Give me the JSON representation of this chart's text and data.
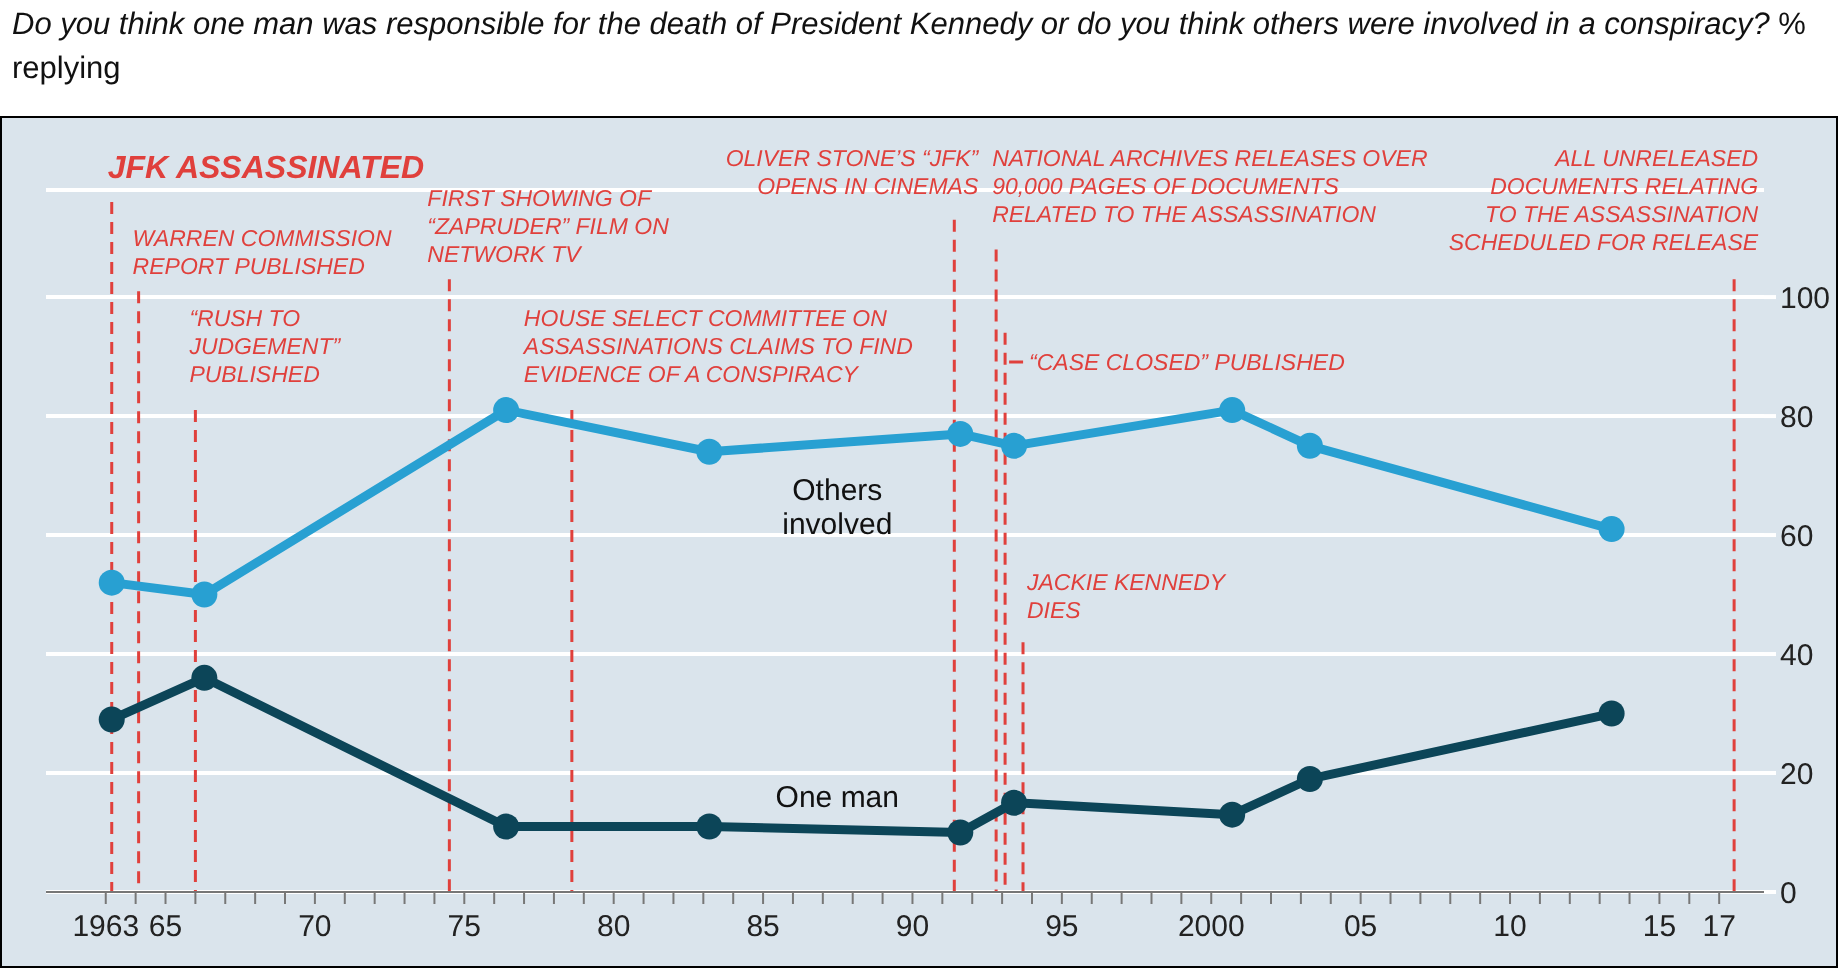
{
  "chart_data": {
    "type": "line",
    "title": "Do you think one man was responsible for the death of President Kennedy or do you think others were involved in a conspiracy?",
    "subtitle": "% replying",
    "x": [
      1963.2,
      1966.3,
      1976.4,
      1983.2,
      1991.6,
      1993.4,
      2000.7,
      2003.3,
      2013.4
    ],
    "series": [
      {
        "name": "Others involved",
        "color": "#28a0d2",
        "values": [
          52,
          50,
          81,
          74,
          77,
          75,
          81,
          75,
          61
        ]
      },
      {
        "name": "One man",
        "color": "#0c4558",
        "values": [
          29,
          36,
          11,
          11,
          10,
          15,
          13,
          19,
          30
        ]
      }
    ],
    "marker": "circle",
    "line_style": "solid",
    "grid": "y",
    "xlim": [
      1961,
      2018.5
    ],
    "xticks": [
      1963,
      {
        "value": 1964,
        "label": null
      },
      {
        "value": 1965,
        "label": "65"
      },
      {
        "value": 1966,
        "label": null
      },
      {
        "value": 1967,
        "label": null
      },
      {
        "value": 1968,
        "label": null
      },
      {
        "value": 1969,
        "label": null
      },
      {
        "value": 1970,
        "label": "70"
      },
      {
        "value": 1971,
        "label": null
      },
      {
        "value": 1972,
        "label": null
      },
      {
        "value": 1973,
        "label": null
      },
      {
        "value": 1974,
        "label": null
      },
      {
        "value": 1975,
        "label": "75"
      },
      {
        "value": 1976,
        "label": null
      },
      {
        "value": 1977,
        "label": null
      },
      {
        "value": 1978,
        "label": null
      },
      {
        "value": 1979,
        "label": null
      },
      {
        "value": 1980,
        "label": "80"
      },
      {
        "value": 1981,
        "label": null
      },
      {
        "value": 1982,
        "label": null
      },
      {
        "value": 1983,
        "label": null
      },
      {
        "value": 1984,
        "label": null
      },
      {
        "value": 1985,
        "label": "85"
      },
      {
        "value": 1986,
        "label": null
      },
      {
        "value": 1987,
        "label": null
      },
      {
        "value": 1988,
        "label": null
      },
      {
        "value": 1989,
        "label": null
      },
      {
        "value": 1990,
        "label": "90"
      },
      {
        "value": 1991,
        "label": null
      },
      {
        "value": 1992,
        "label": null
      },
      {
        "value": 1993,
        "label": null
      },
      {
        "value": 1994,
        "label": null
      },
      {
        "value": 1995,
        "label": "95"
      },
      {
        "value": 1996,
        "label": null
      },
      {
        "value": 1997,
        "label": null
      },
      {
        "value": 1998,
        "label": null
      },
      {
        "value": 1999,
        "label": null
      },
      2000,
      {
        "value": 2001,
        "label": null
      },
      {
        "value": 2002,
        "label": null
      },
      {
        "value": 2003,
        "label": null
      },
      {
        "value": 2004,
        "label": null
      },
      {
        "value": 2005,
        "label": "05"
      },
      {
        "value": 2006,
        "label": null
      },
      {
        "value": 2007,
        "label": null
      },
      {
        "value": 2008,
        "label": null
      },
      {
        "value": 2009,
        "label": null
      },
      {
        "value": 2010,
        "label": "10"
      },
      {
        "value": 2011,
        "label": null
      },
      {
        "value": 2012,
        "label": null
      },
      {
        "value": 2013,
        "label": null
      },
      {
        "value": 2014,
        "label": null
      },
      {
        "value": 2015,
        "label": "15"
      },
      {
        "value": 2016,
        "label": null
      },
      {
        "value": 2017,
        "label": "17"
      }
    ],
    "ylim": [
      0,
      118
    ],
    "yticks": [
      0,
      20,
      40,
      60,
      80,
      100
    ],
    "ref_lines": [
      {
        "axis": "x",
        "value": 1963.2,
        "label": "JFK ASSASSINATED",
        "color": "#e0403c",
        "line_style": "dashed"
      },
      {
        "axis": "x",
        "value": 1964.1,
        "label": "WARREN COMMISSION\nREPORT PUBLISHED",
        "color": "#e0403c",
        "line_style": "dashed"
      },
      {
        "axis": "x",
        "value": 1966.0,
        "label": "“RUSH TO\nJUDGEMENT”\nPUBLISHED",
        "color": "#e0403c",
        "line_style": "dashed"
      },
      {
        "axis": "x",
        "value": 1974.5,
        "label": "FIRST SHOWING OF\n“ZAPRUDER” FILM ON\nNETWORK TV",
        "color": "#e0403c",
        "line_style": "dashed"
      },
      {
        "axis": "x",
        "value": 1978.6,
        "label": "HOUSE SELECT COMMITTEE ON\nASSASSINATIONS CLAIMS TO FIND\nEVIDENCE OF A CONSPIRACY",
        "color": "#e0403c",
        "line_style": "dashed"
      },
      {
        "axis": "x",
        "value": 1991.4,
        "label": "OLIVER STONE’S “JFK”\nOPENS IN CINEMAS",
        "color": "#e0403c",
        "line_style": "dashed"
      },
      {
        "axis": "x",
        "value": 1992.8,
        "label": "NATIONAL ARCHIVES RELEASES OVER\n90,000 PAGES OF DOCUMENTS\nRELATED TO THE ASSASSINATION",
        "color": "#e0403c",
        "line_style": "dashed"
      },
      {
        "axis": "x",
        "value": 1993.1,
        "label": "“CASE CLOSED” PUBLISHED",
        "color": "#e0403c",
        "line_style": "dashed"
      },
      {
        "axis": "x",
        "value": 1993.7,
        "label": "JACKIE KENNEDY\nDIES",
        "color": "#e0403c",
        "line_style": "dashed"
      },
      {
        "axis": "x",
        "value": 2017.5,
        "label": "ALL UNRELEASED\nDOCUMENTS RELATING\nTO THE ASSASSINATION\nSCHEDULED FOR RELEASE",
        "color": "#e0403c",
        "line_style": "dashed"
      }
    ]
  }
}
